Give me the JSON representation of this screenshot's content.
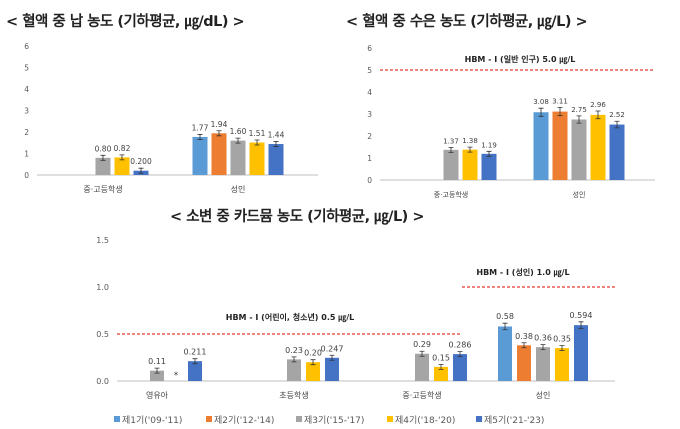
{
  "legend": {
    "items": [
      {
        "label": "제1기('09-'11)",
        "color": "#5b9bd5"
      },
      {
        "label": "제2기('12-'14)",
        "color": "#ed7d31"
      },
      {
        "label": "제3기('15-'17)",
        "color": "#a5a5a5"
      },
      {
        "label": "제4기('18-'20)",
        "color": "#ffc000"
      },
      {
        "label": "제5기('21-'23)",
        "color": "#4472c4"
      }
    ]
  },
  "chart_data": [
    {
      "type": "bar",
      "title": "< 혈액 중 납 농도 (기하평균, ㎍/dL) >",
      "categories": [
        "중·고등학생",
        "성인"
      ],
      "ylim": [
        0,
        6
      ],
      "yticks": [
        "0",
        "1",
        "2",
        "3",
        "4",
        "5",
        "6"
      ],
      "series": [
        {
          "name": "제1기('09-'11)",
          "values": [
            null,
            1.77
          ],
          "labels": [
            "",
            "1.77"
          ]
        },
        {
          "name": "제2기('12-'14)",
          "values": [
            null,
            1.94
          ],
          "labels": [
            "",
            "1.94"
          ]
        },
        {
          "name": "제3기('15-'17)",
          "values": [
            0.8,
            1.6
          ],
          "labels": [
            "0.80",
            "1.60"
          ]
        },
        {
          "name": "제4기('18-'20)",
          "values": [
            0.82,
            1.51
          ],
          "labels": [
            "0.82",
            "1.51"
          ]
        },
        {
          "name": "제5기('21-'23)",
          "values": [
            0.2,
            1.44
          ],
          "labels": [
            "0.200",
            "1.44"
          ]
        }
      ]
    },
    {
      "type": "bar",
      "title": "< 혈액 중 수은 농도 (기하평균, ㎍/L) >",
      "categories": [
        "중·고등학생",
        "성인"
      ],
      "ylim": [
        0,
        6
      ],
      "yticks": [
        "0",
        "1",
        "2",
        "3",
        "4",
        "5",
        "6"
      ],
      "reference_lines": [
        {
          "value": 5.0,
          "label": "HBM - Ⅰ (일반 인구) 5.0 ㎍/L"
        }
      ],
      "series": [
        {
          "name": "제1기('09-'11)",
          "values": [
            null,
            3.08
          ],
          "labels": [
            "",
            "3.08"
          ]
        },
        {
          "name": "제2기('12-'14)",
          "values": [
            null,
            3.11
          ],
          "labels": [
            "",
            "3.11"
          ]
        },
        {
          "name": "제3기('15-'17)",
          "values": [
            1.37,
            2.75
          ],
          "labels": [
            "1.37",
            "2.75"
          ]
        },
        {
          "name": "제4기('18-'20)",
          "values": [
            1.38,
            2.96
          ],
          "labels": [
            "1.38",
            "2.96"
          ]
        },
        {
          "name": "제5기('21-'23)",
          "values": [
            1.19,
            2.52
          ],
          "labels": [
            "1.19",
            "2.52"
          ]
        }
      ]
    },
    {
      "type": "bar",
      "title": "< 소변 중 카드뮴 농도 (기하평균, ㎍/L) >",
      "categories": [
        "영유아",
        "초등학생",
        "중·고등학생",
        "성인"
      ],
      "ylim": [
        0,
        1.5
      ],
      "yticks": [
        "0.0",
        "0.5",
        "1.0",
        "1.5"
      ],
      "reference_lines": [
        {
          "value": 0.5,
          "label": "HBM - Ⅰ (어린이, 청소년) 0.5 ㎍/L"
        },
        {
          "value": 1.0,
          "label": "HBM - Ⅰ (성인) 1.0 ㎍/L"
        }
      ],
      "series": [
        {
          "name": "제1기('09-'11)",
          "values": [
            null,
            null,
            null,
            0.58
          ],
          "labels": [
            "",
            "",
            "",
            "0.58"
          ]
        },
        {
          "name": "제2기('12-'14)",
          "values": [
            null,
            null,
            null,
            0.38
          ],
          "labels": [
            "",
            "",
            "",
            "0.38"
          ]
        },
        {
          "name": "제3기('15-'17)",
          "values": [
            0.11,
            0.23,
            0.29,
            0.36
          ],
          "labels": [
            "0.11",
            "0.23",
            "0.29",
            "0.36"
          ]
        },
        {
          "name": "제4기('18-'20)",
          "values": [
            null,
            0.2,
            0.15,
            0.35
          ],
          "labels": [
            "*",
            "0.20",
            "0.15",
            "0.35"
          ]
        },
        {
          "name": "제5기('21-'23)",
          "values": [
            0.211,
            0.247,
            0.286,
            0.594
          ],
          "labels": [
            "0.211",
            "0.247",
            "0.286",
            "0.594"
          ]
        }
      ]
    }
  ]
}
